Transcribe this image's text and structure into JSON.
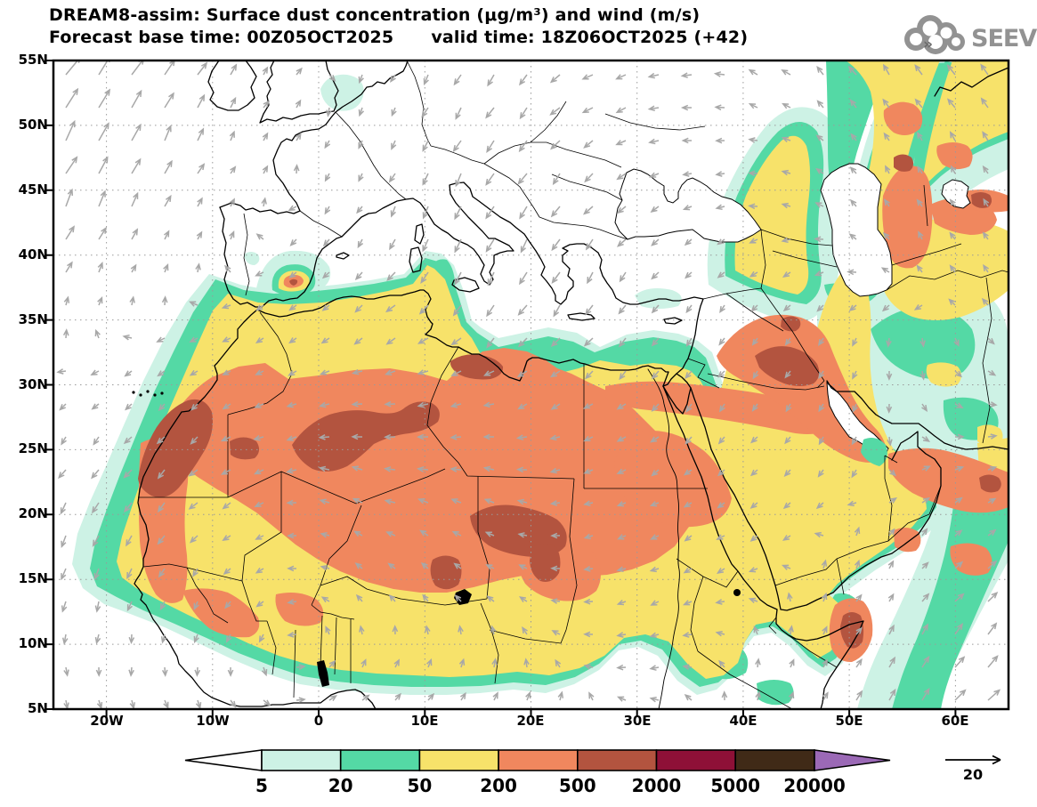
{
  "header": {
    "title": "DREAM8-assim: Surface dust concentration (μg/m³) and wind (m/s)",
    "forecast_base": "Forecast base time: 00Z05OCT2025",
    "valid_time": "valid time: 18Z06OCT2025 (+42)",
    "logo_text": "SEEVCCC"
  },
  "map": {
    "lat_labels": [
      "55N",
      "50N",
      "45N",
      "40N",
      "35N",
      "30N",
      "25N",
      "20N",
      "15N",
      "10N",
      "5N"
    ],
    "lon_labels": [
      "20W",
      "10W",
      "0",
      "10E",
      "20E",
      "30E",
      "40E",
      "50E",
      "60E"
    ]
  },
  "legend": {
    "values": [
      "5",
      "20",
      "50",
      "200",
      "500",
      "2000",
      "5000",
      "20000"
    ],
    "wind_ref": "20"
  },
  "theme": {
    "bin1": "#cdf2e5",
    "bin2": "#54d9a5",
    "bin3": "#f7e26a",
    "bin4": "#f0875e",
    "bin5": "#b3543f",
    "bin6": "#8e1037",
    "bin7": "#402a17",
    "bin8": "#9b69b6",
    "wind": "#a8a8a8",
    "coast": "#000000",
    "grid": "#9a9a9a",
    "logo": "#929292"
  }
}
